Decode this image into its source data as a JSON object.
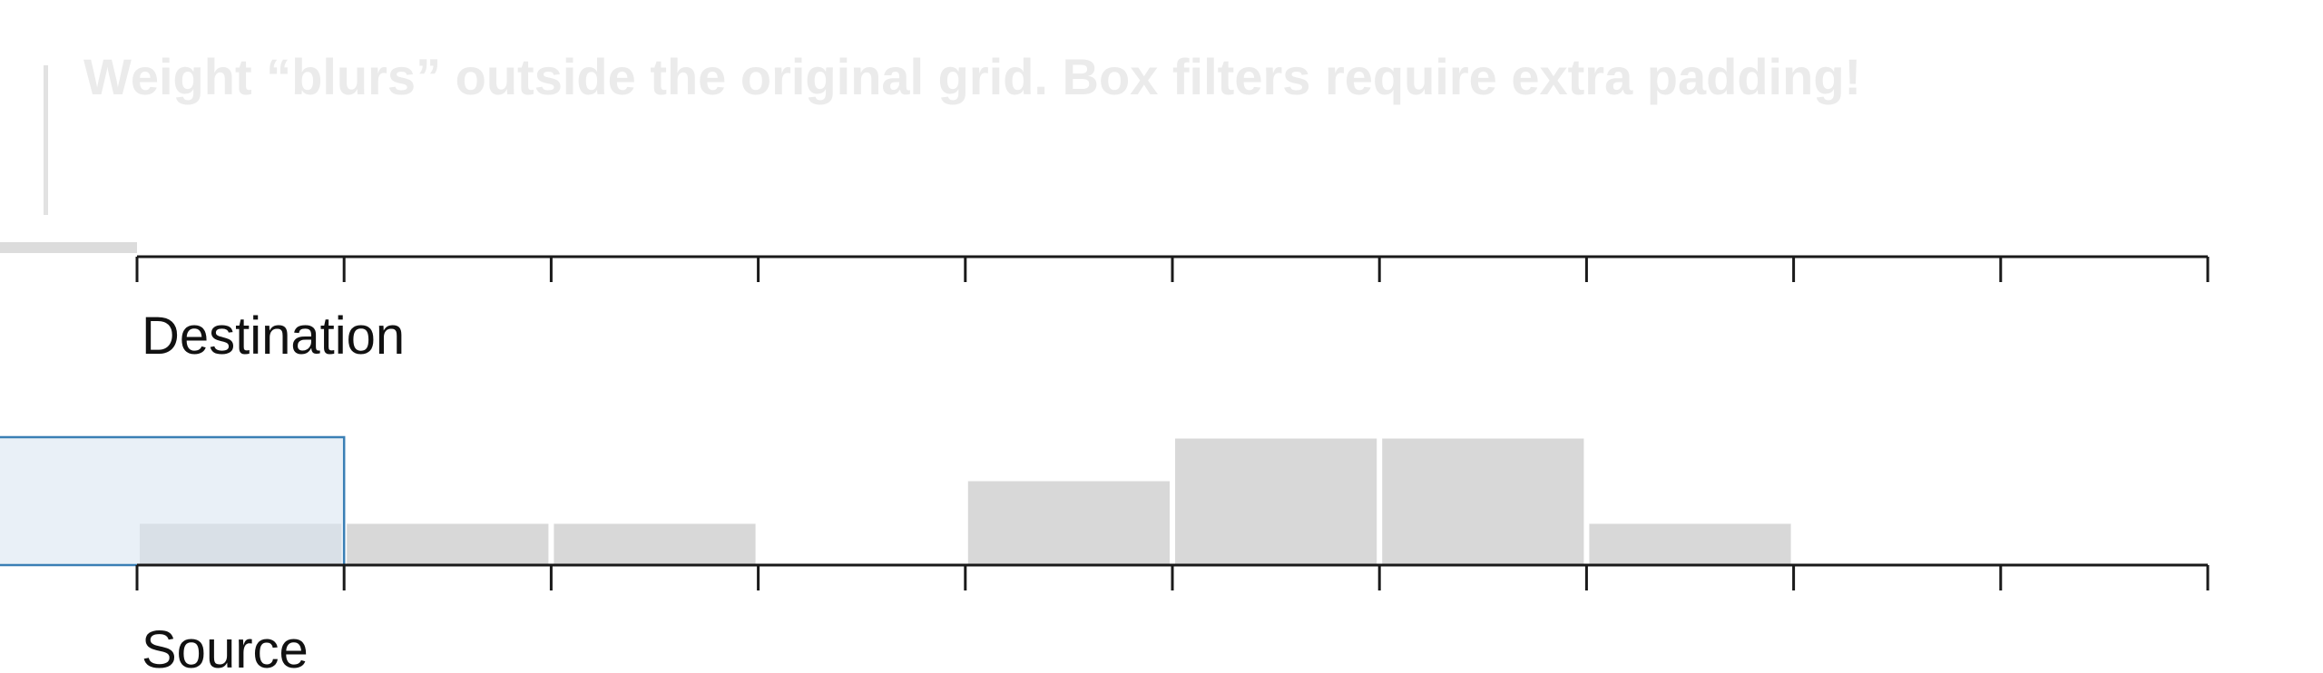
{
  "headline": "Weight “blurs” outside the original grid. Box filters require extra padding!",
  "destination_label": "Destination",
  "source_label": "Source",
  "colors": {
    "bar": "#d8d8d8",
    "highlight_fill": "#dae6f2",
    "highlight_stroke": "#3a7fb5",
    "axis": "#1a1a1a"
  },
  "chart_data": {
    "type": "bar",
    "ticks": 11,
    "source_weights": [
      1,
      1,
      1,
      0,
      2,
      3,
      3,
      1,
      0,
      0
    ],
    "highlight_cells": [
      -1,
      0
    ]
  }
}
